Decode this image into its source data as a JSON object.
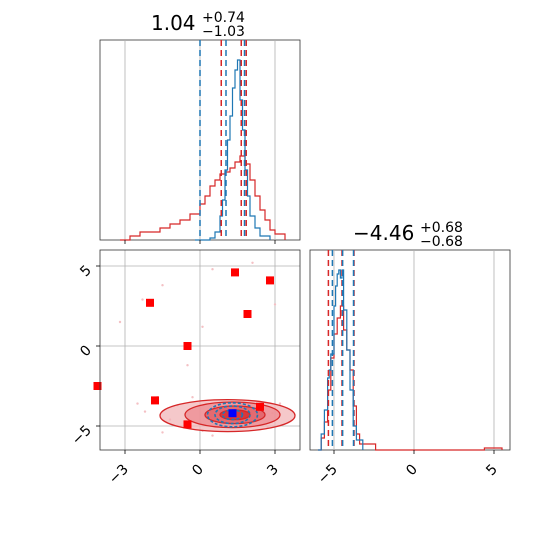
{
  "colors": {
    "blue": "#1f77b4",
    "red": "#d62728",
    "marker_red": "#ff0000",
    "marker_blue": "#0000ff",
    "grid": "#b0b0b0"
  },
  "chart_data": {
    "type": "corner",
    "params": [
      {
        "title_median": "1.04",
        "title_plus": "+0.74",
        "title_minus": "−1.03",
        "range": [
          -4.0,
          4.0
        ],
        "ticks": [
          -3,
          0,
          3
        ],
        "tick_labels": [
          "−3",
          "0",
          "3"
        ],
        "quantiles_blue": [
          0.0,
          1.04,
          1.78
        ],
        "quantiles_red": [
          0.85,
          1.65,
          1.85
        ]
      },
      {
        "title_median": "−4.46",
        "title_plus": "+0.68",
        "title_minus": "−0.68",
        "range": [
          -6.5,
          6.0
        ],
        "ticks": [
          -5,
          0,
          5
        ],
        "tick_labels": [
          "−5",
          "0",
          "5"
        ],
        "quantiles_blue": [
          -5.1,
          -4.46,
          -3.78
        ],
        "quantiles_red": [
          -5.35,
          -4.5,
          -3.75
        ]
      }
    ],
    "hist_blue_p1": [
      [
        -0.2,
        0
      ],
      [
        0.4,
        0.01
      ],
      [
        0.6,
        0.04
      ],
      [
        0.8,
        0.12
      ],
      [
        0.9,
        0.2
      ],
      [
        1.0,
        0.35
      ],
      [
        1.1,
        0.5
      ],
      [
        1.2,
        0.62
      ],
      [
        1.3,
        0.76
      ],
      [
        1.4,
        0.85
      ],
      [
        1.5,
        0.9
      ],
      [
        1.6,
        0.7
      ],
      [
        1.7,
        0.55
      ],
      [
        1.8,
        0.35
      ],
      [
        1.9,
        0.22
      ],
      [
        2.0,
        0.12
      ],
      [
        2.2,
        0.06
      ],
      [
        2.4,
        0.02
      ],
      [
        2.8,
        0
      ]
    ],
    "hist_red_p1": [
      [
        -3.2,
        0.0
      ],
      [
        -2.8,
        0.02
      ],
      [
        -2.4,
        0.04
      ],
      [
        -2.0,
        0.04
      ],
      [
        -1.6,
        0.06
      ],
      [
        -1.2,
        0.08
      ],
      [
        -0.8,
        0.1
      ],
      [
        -0.4,
        0.13
      ],
      [
        0.0,
        0.18
      ],
      [
        0.2,
        0.22
      ],
      [
        0.4,
        0.27
      ],
      [
        0.6,
        0.3
      ],
      [
        0.8,
        0.33
      ],
      [
        1.0,
        0.34
      ],
      [
        1.2,
        0.36
      ],
      [
        1.4,
        0.39
      ],
      [
        1.6,
        0.42
      ],
      [
        1.8,
        0.38
      ],
      [
        2.0,
        0.3
      ],
      [
        2.2,
        0.22
      ],
      [
        2.4,
        0.15
      ],
      [
        2.6,
        0.1
      ],
      [
        2.8,
        0.05
      ],
      [
        3.0,
        0.03
      ],
      [
        3.4,
        0.0
      ]
    ],
    "hist_blue_p2": [
      [
        -6.0,
        0.0
      ],
      [
        -5.8,
        0.08
      ],
      [
        -5.6,
        0.2
      ],
      [
        -5.4,
        0.36
      ],
      [
        -5.3,
        0.4
      ],
      [
        -5.2,
        0.48
      ],
      [
        -5.0,
        0.72
      ],
      [
        -4.9,
        0.82
      ],
      [
        -4.8,
        0.88
      ],
      [
        -4.7,
        0.9
      ],
      [
        -4.6,
        0.86
      ],
      [
        -4.5,
        0.9
      ],
      [
        -4.4,
        0.7
      ],
      [
        -4.2,
        0.5
      ],
      [
        -4.0,
        0.3
      ],
      [
        -3.8,
        0.12
      ],
      [
        -3.6,
        0.05
      ],
      [
        -3.2,
        0.0
      ]
    ],
    "hist_red_p2": [
      [
        -6.0,
        0.0
      ],
      [
        -5.8,
        0.06
      ],
      [
        -5.6,
        0.14
      ],
      [
        -5.4,
        0.3
      ],
      [
        -5.2,
        0.46
      ],
      [
        -5.0,
        0.58
      ],
      [
        -4.8,
        0.66
      ],
      [
        -4.6,
        0.72
      ],
      [
        -4.4,
        0.6
      ],
      [
        -4.2,
        0.5
      ],
      [
        -4.0,
        0.4
      ],
      [
        -3.8,
        0.22
      ],
      [
        -3.6,
        0.08
      ],
      [
        -3.4,
        0.03
      ],
      [
        -2.4,
        0.0
      ],
      [
        4.2,
        0.0
      ],
      [
        4.4,
        0.01
      ],
      [
        5.0,
        0.01
      ],
      [
        5.5,
        0.0
      ]
    ],
    "red_markers": [
      [
        -2.0,
        2.7
      ],
      [
        1.4,
        4.6
      ],
      [
        2.8,
        4.1
      ],
      [
        1.9,
        2.0
      ],
      [
        -0.5,
        0.0
      ],
      [
        -4.1,
        -2.5
      ],
      [
        -1.8,
        -3.4
      ],
      [
        -0.5,
        -4.9
      ],
      [
        2.4,
        -3.8
      ]
    ],
    "blue_marker": [
      1.3,
      -4.2
    ],
    "red_contours": [
      {
        "cx": 1.1,
        "cy": -4.35,
        "rx": 2.7,
        "ry": 1.0
      },
      {
        "cx": 1.3,
        "cy": -4.3,
        "rx": 1.9,
        "ry": 0.8
      },
      {
        "cx": 1.4,
        "cy": -4.3,
        "rx": 1.2,
        "ry": 0.55
      },
      {
        "cx": 1.4,
        "cy": -4.3,
        "rx": 0.6,
        "ry": 0.3
      }
    ],
    "blue_contours": [
      {
        "cx": 1.3,
        "cy": -4.3,
        "rx": 1.0,
        "ry": 0.75
      },
      {
        "cx": 1.3,
        "cy": -4.3,
        "rx": 0.7,
        "ry": 0.55
      },
      {
        "cx": 1.3,
        "cy": -4.3,
        "rx": 0.4,
        "ry": 0.3
      }
    ]
  }
}
